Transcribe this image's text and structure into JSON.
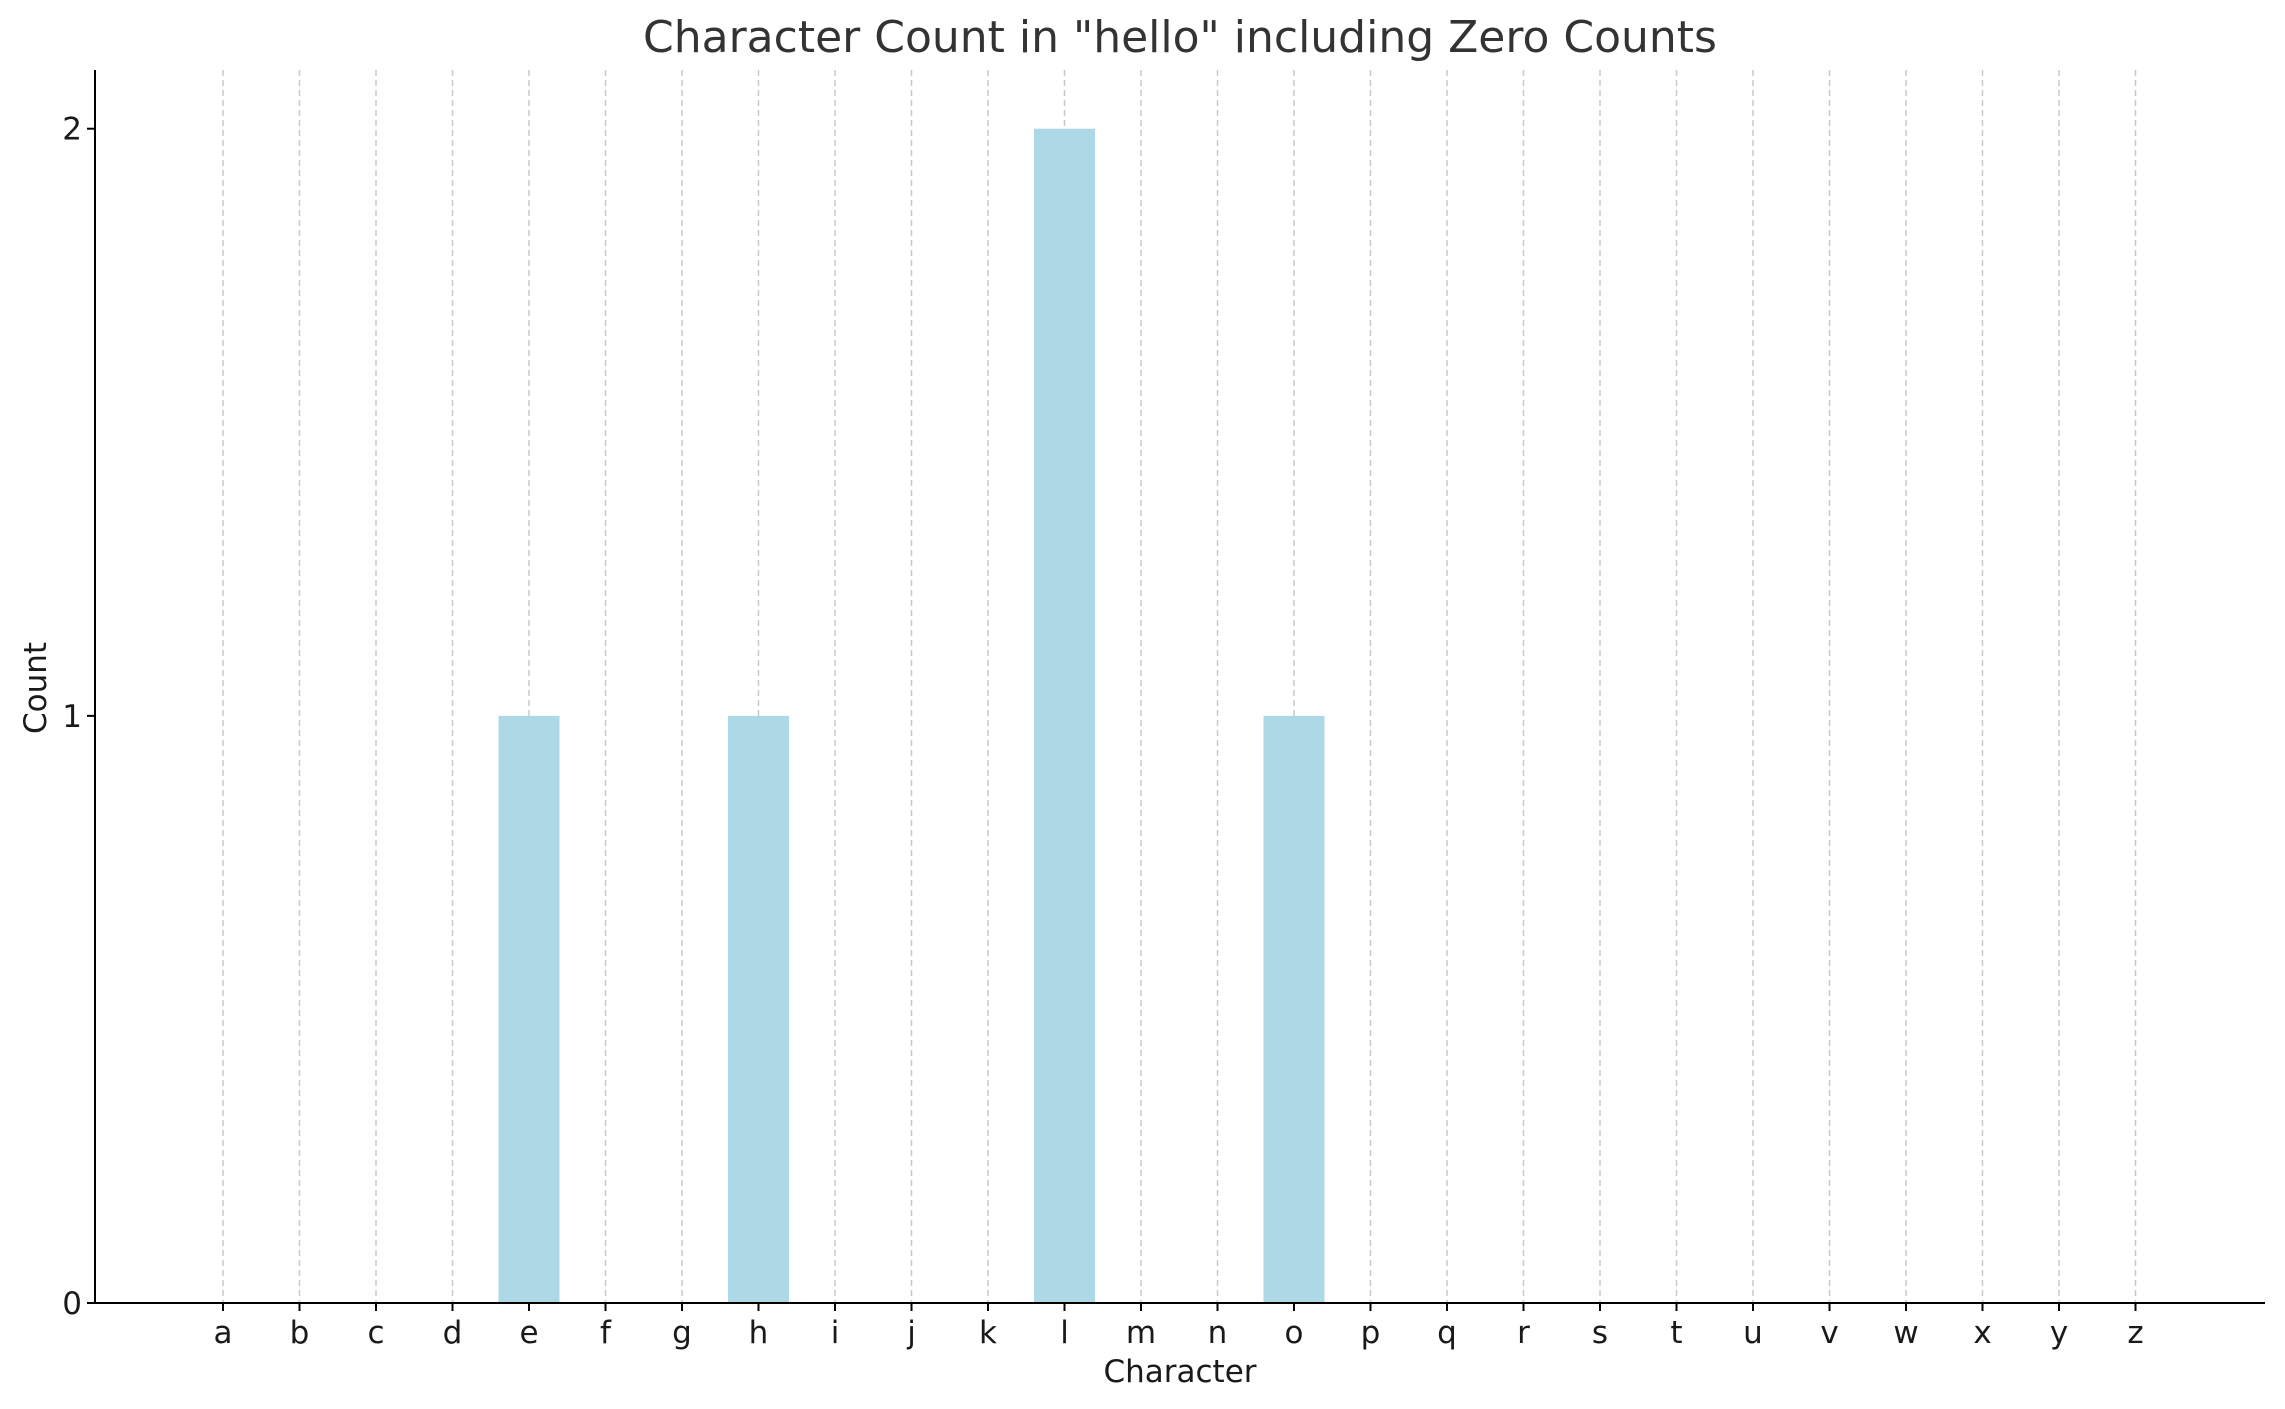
{
  "chart_data": {
    "type": "bar",
    "title": "Character Count in \"hello\" including Zero Counts",
    "xlabel": "Character",
    "ylabel": "Count",
    "categories": [
      "a",
      "b",
      "c",
      "d",
      "e",
      "f",
      "g",
      "h",
      "i",
      "j",
      "k",
      "l",
      "m",
      "n",
      "o",
      "p",
      "q",
      "r",
      "s",
      "t",
      "u",
      "v",
      "w",
      "x",
      "y",
      "z"
    ],
    "values": [
      0,
      0,
      0,
      0,
      1,
      0,
      0,
      1,
      0,
      0,
      0,
      2,
      0,
      0,
      1,
      0,
      0,
      0,
      0,
      0,
      0,
      0,
      0,
      0,
      0,
      0
    ],
    "ylim": [
      0,
      2.1
    ],
    "yticks": [
      0,
      1,
      2
    ],
    "grid": "vertical dashed",
    "bar_color": "#add8e6"
  }
}
